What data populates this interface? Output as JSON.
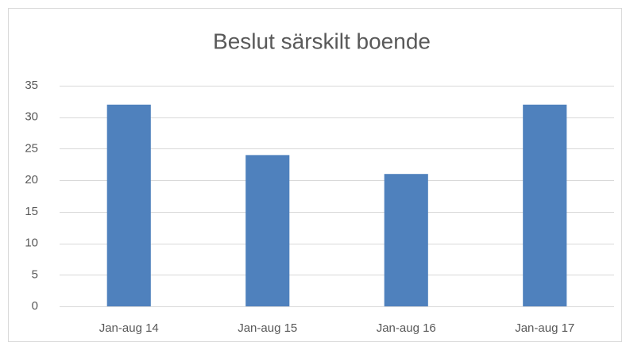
{
  "chart_data": {
    "type": "bar",
    "title": "Beslut särskilt boende",
    "categories": [
      "Jan-aug 14",
      "Jan-aug 15",
      "Jan-aug 16",
      "Jan-aug 17"
    ],
    "values": [
      32,
      24,
      21,
      32
    ],
    "color": "#4f81bd",
    "ylim": [
      0,
      35
    ],
    "yticks": [
      0,
      5,
      10,
      15,
      20,
      25,
      30,
      35
    ],
    "grid": true
  }
}
